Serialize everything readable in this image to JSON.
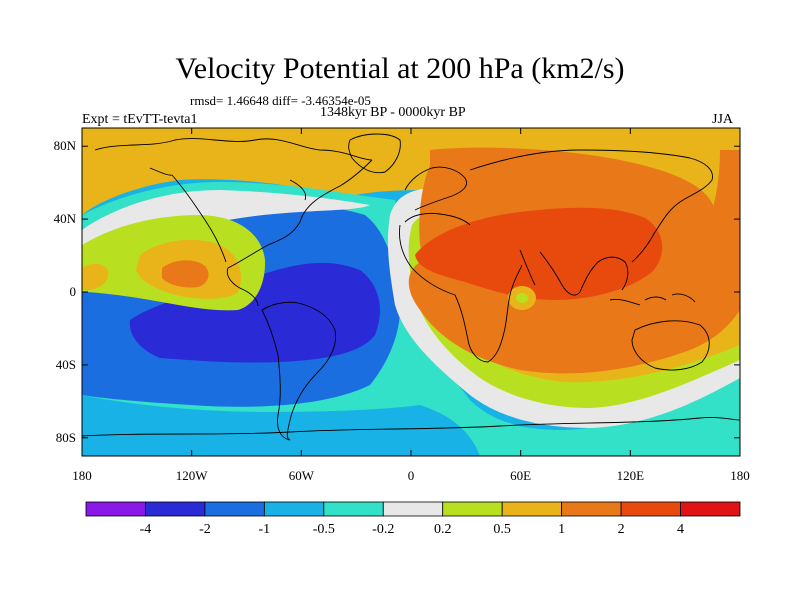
{
  "title": "Velocity Potential at 200 hPa (km2/s)",
  "stats_line": "rmsd= 1.46648 diff= -3.46354e-05",
  "period": "1348kyr BP - 0000kyr BP",
  "experiment": "Expt = tEvTT-tevta1",
  "season": "JJA",
  "lat_ticks": [
    "80N",
    "40N",
    "0",
    "40S",
    "80S"
  ],
  "lat_values": [
    80,
    40,
    0,
    -40,
    -80
  ],
  "lon_ticks": [
    "180",
    "120W",
    "60W",
    "0",
    "60E",
    "120E",
    "180"
  ],
  "lon_values": [
    -180,
    -120,
    -60,
    0,
    60,
    120,
    180
  ],
  "colorbar": {
    "labels": [
      "-4",
      "-2",
      "-1",
      "-0.5",
      "-0.2",
      "0.2",
      "0.5",
      "1",
      "2",
      "4"
    ],
    "colors": [
      "#8a18e6",
      "#2a2ad6",
      "#1a6ee0",
      "#18b2e6",
      "#33e0c8",
      "#e8e8e8",
      "#b8e020",
      "#e8b41a",
      "#e87818",
      "#e84a0e",
      "#e01414"
    ]
  },
  "field": {
    "description_free": true,
    "colors": {
      "lt_m2": "#2a2ad6",
      "m2_m1": "#1a6ee0",
      "m1_m05": "#18b2e6",
      "m05_m02": "#33e0c8",
      "neutral": "#e8e8e8",
      "p02_05": "#b8e020",
      "p05_1": "#e8b41a",
      "p1_2": "#e87818",
      "p2_4": "#e84a0e"
    }
  }
}
